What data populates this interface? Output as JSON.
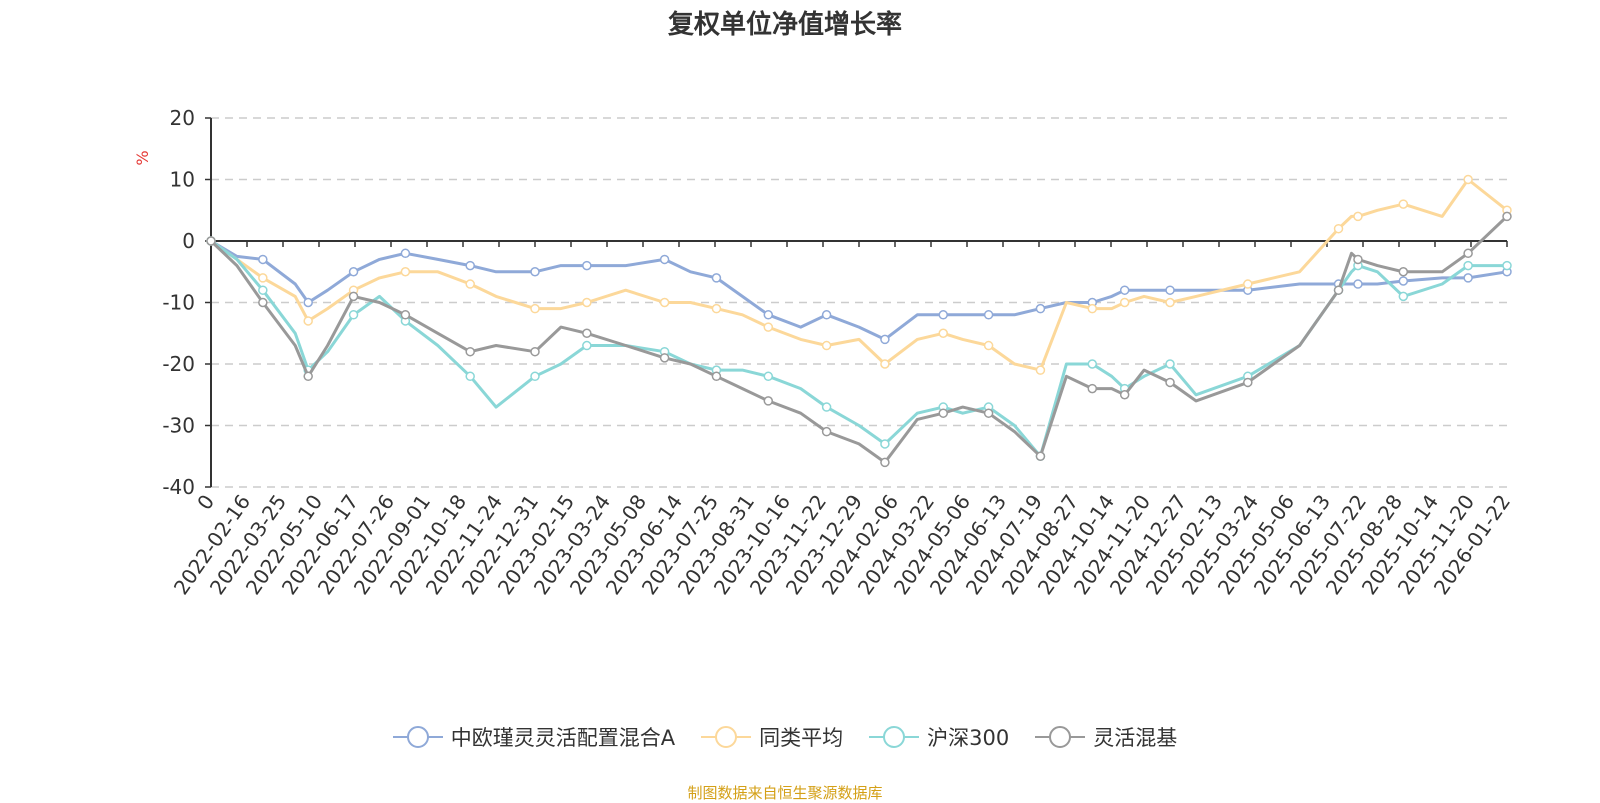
{
  "chart_data": {
    "type": "line",
    "title": "复权单位净值增长率",
    "ylabel": "%",
    "ylim": [
      -40,
      20
    ],
    "yticks": [
      20,
      10,
      0,
      -10,
      -20,
      -30,
      -40
    ],
    "grid": true,
    "legend_position": "bottom",
    "x_labels": [
      "0",
      "2022-02-16",
      "2022-03-25",
      "2022-05-10",
      "2022-06-17",
      "2022-07-26",
      "2022-09-01",
      "2022-10-18",
      "2022-11-24",
      "2022-12-31",
      "2023-02-15",
      "2023-03-24",
      "2023-05-08",
      "2023-06-14",
      "2023-07-25",
      "2023-08-31",
      "2023-10-16",
      "2023-11-22",
      "2023-12-29",
      "2024-02-06",
      "2024-03-22",
      "2024-05-06",
      "2024-06-13",
      "2024-07-19",
      "2024-08-27",
      "2024-10-14",
      "2024-11-20",
      "2024-12-27",
      "2025-02-13",
      "2025-03-24",
      "2025-05-06",
      "2025-06-13",
      "2025-07-22",
      "2025-08-28",
      "2025-10-14",
      "2025-11-20",
      "2026-01-22"
    ],
    "x_points": [
      0,
      0.02,
      0.04,
      0.065,
      0.075,
      0.09,
      0.11,
      0.13,
      0.15,
      0.175,
      0.2,
      0.22,
      0.25,
      0.27,
      0.29,
      0.32,
      0.35,
      0.37,
      0.39,
      0.41,
      0.43,
      0.455,
      0.475,
      0.5,
      0.52,
      0.545,
      0.565,
      0.58,
      0.6,
      0.62,
      0.64,
      0.66,
      0.68,
      0.695,
      0.705,
      0.72,
      0.74,
      0.76,
      0.8,
      0.84,
      0.87,
      0.88,
      0.885,
      0.9,
      0.92,
      0.95,
      0.97,
      1.0
    ],
    "series": [
      {
        "name": "中欧瑾灵灵活配置混合A",
        "color": "#8fa9d8",
        "values": [
          0,
          -2.5,
          -3,
          -7,
          -10,
          -8,
          -5,
          -3,
          -2,
          -3,
          -4,
          -5,
          -5,
          -4,
          -4,
          -4,
          -3,
          -5,
          -6,
          -9,
          -12,
          -14,
          -12,
          -14,
          -16,
          -12,
          -12,
          -12,
          -12,
          -12,
          -11,
          -10,
          -10,
          -9,
          -8,
          -8,
          -8,
          -8,
          -8,
          -7,
          -7,
          -7,
          -7,
          -7,
          -6.5,
          -6,
          -6,
          -5
        ]
      },
      {
        "name": "同类平均",
        "color": "#fcd89a",
        "values": [
          0,
          -3,
          -6,
          -9,
          -13,
          -11,
          -8,
          -6,
          -5,
          -5,
          -7,
          -9,
          -11,
          -11,
          -10,
          -8,
          -10,
          -10,
          -11,
          -12,
          -14,
          -16,
          -17,
          -16,
          -20,
          -16,
          -15,
          -16,
          -17,
          -20,
          -21,
          -10,
          -11,
          -11,
          -10,
          -9,
          -10,
          -9,
          -7,
          -5,
          2,
          4,
          4,
          5,
          6,
          4,
          10,
          5
        ]
      },
      {
        "name": "沪深300",
        "color": "#8ad7d7",
        "values": [
          0,
          -3,
          -8,
          -15,
          -21,
          -18,
          -12,
          -9,
          -13,
          -17,
          -22,
          -27,
          -22,
          -20,
          -17,
          -17,
          -18,
          -20,
          -21,
          -21,
          -22,
          -24,
          -27,
          -30,
          -33,
          -28,
          -27,
          -28,
          -27,
          -30,
          -35,
          -20,
          -20,
          -22,
          -24,
          -22,
          -20,
          -25,
          -22,
          -17,
          -8,
          -5,
          -4,
          -5,
          -9,
          -7,
          -4,
          -4
        ]
      },
      {
        "name": "灵活混基",
        "color": "#999999",
        "values": [
          0,
          -4,
          -10,
          -17,
          -22,
          -17,
          -9,
          -10,
          -12,
          -15,
          -18,
          -17,
          -18,
          -14,
          -15,
          -17,
          -19,
          -20,
          -22,
          -24,
          -26,
          -28,
          -31,
          -33,
          -36,
          -29,
          -28,
          -27,
          -28,
          -31,
          -35,
          -22,
          -24,
          -24,
          -25,
          -21,
          -23,
          -26,
          -23,
          -17,
          -8,
          -2,
          -3,
          -4,
          -5,
          -5,
          -2,
          4
        ]
      }
    ]
  },
  "source": "制图数据来自恒生聚源数据库"
}
